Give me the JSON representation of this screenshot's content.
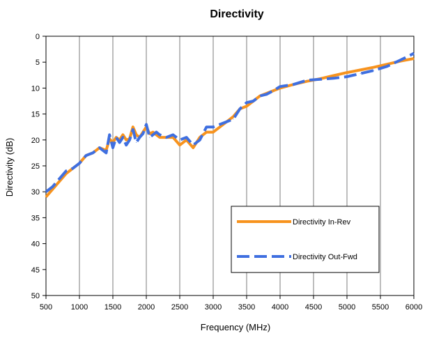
{
  "chart_data": {
    "type": "line",
    "title": "Directivity",
    "xlabel": "Frequency (MHz)",
    "ylabel": "Directivity (dB)",
    "xlim": [
      500,
      6000
    ],
    "ylim": [
      0,
      50
    ],
    "y_inverted": true,
    "x_ticks": [
      "500",
      "1000",
      "1500",
      "2000",
      "2500",
      "3000",
      "3500",
      "4000",
      "4500",
      "5000",
      "5500",
      "6000"
    ],
    "y_ticks": [
      "0",
      "5",
      "10",
      "15",
      "20",
      "25",
      "30",
      "35",
      "40",
      "45",
      "50"
    ],
    "grid": "vertical",
    "legend_position": "bottom-right",
    "series": [
      {
        "name": "Directivity In-Rev",
        "color": "#F7931E",
        "style": "solid",
        "x": [
          500,
          600,
          700,
          800,
          900,
          1000,
          1100,
          1200,
          1300,
          1400,
          1450,
          1500,
          1550,
          1600,
          1650,
          1700,
          1750,
          1800,
          1850,
          1900,
          1950,
          2000,
          2050,
          2100,
          2150,
          2200,
          2300,
          2400,
          2500,
          2600,
          2700,
          2800,
          2900,
          3000,
          3100,
          3200,
          3300,
          3400,
          3500,
          3600,
          3700,
          3800,
          3900,
          4000,
          4200,
          4400,
          4600,
          4800,
          5000,
          5200,
          5400,
          5600,
          5800,
          6000
        ],
        "y": [
          31.0,
          29.5,
          28.0,
          26.5,
          25.5,
          24.5,
          23.0,
          22.5,
          21.5,
          22.0,
          19.8,
          20.5,
          19.5,
          20.0,
          19.0,
          20.0,
          19.8,
          17.5,
          19.0,
          19.5,
          18.5,
          17.5,
          18.8,
          18.5,
          19.0,
          19.5,
          19.5,
          19.5,
          21.0,
          20.0,
          21.5,
          19.5,
          18.5,
          18.5,
          17.5,
          16.5,
          15.5,
          14.0,
          13.5,
          12.5,
          11.5,
          11.0,
          10.5,
          10.0,
          9.3,
          8.7,
          8.2,
          7.6,
          7.0,
          6.5,
          6.0,
          5.4,
          4.8,
          4.3
        ]
      },
      {
        "name": "Directivity Out-Fwd",
        "color": "#3F6FE0",
        "style": "dashed",
        "x": [
          500,
          600,
          700,
          800,
          900,
          1000,
          1100,
          1200,
          1300,
          1400,
          1450,
          1500,
          1550,
          1600,
          1650,
          1700,
          1750,
          1800,
          1850,
          1900,
          1950,
          2000,
          2050,
          2100,
          2150,
          2200,
          2300,
          2400,
          2500,
          2600,
          2700,
          2800,
          2900,
          3000,
          3100,
          3200,
          3300,
          3400,
          3500,
          3600,
          3700,
          3800,
          3900,
          4000,
          4200,
          4400,
          4600,
          4800,
          5000,
          5200,
          5400,
          5600,
          5800,
          6000
        ],
        "y": [
          30.0,
          29.0,
          27.5,
          26.0,
          25.5,
          24.5,
          23.0,
          22.5,
          21.5,
          22.5,
          19.0,
          21.5,
          19.5,
          20.5,
          19.5,
          21.0,
          20.0,
          18.0,
          20.5,
          19.5,
          18.8,
          17.0,
          19.5,
          19.0,
          18.5,
          19.0,
          19.5,
          19.0,
          20.0,
          19.5,
          21.0,
          20.0,
          17.5,
          17.5,
          17.0,
          16.5,
          16.0,
          14.0,
          12.8,
          12.5,
          11.5,
          11.2,
          10.5,
          9.7,
          9.3,
          8.5,
          8.3,
          8.1,
          7.8,
          7.2,
          6.6,
          5.8,
          4.6,
          3.3
        ]
      }
    ]
  }
}
